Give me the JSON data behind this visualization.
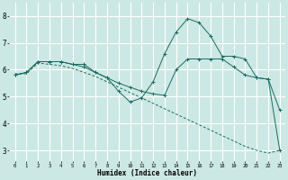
{
  "xlabel": "Humidex (Indice chaleur)",
  "background_color": "#cce8e4",
  "grid_color": "#ffffff",
  "line_color": "#1a6b60",
  "x_ticks": [
    0,
    1,
    2,
    3,
    4,
    5,
    6,
    7,
    8,
    9,
    10,
    11,
    12,
    13,
    14,
    15,
    16,
    17,
    18,
    19,
    20,
    21,
    22,
    23
  ],
  "yticks": [
    3,
    4,
    5,
    6,
    7,
    8
  ],
  "ylim": [
    2.6,
    8.5
  ],
  "xlim": [
    -0.5,
    23.5
  ],
  "series1_x": [
    0,
    1,
    2,
    3,
    4,
    5,
    6,
    7,
    8,
    9,
    10,
    11,
    12,
    13,
    14,
    15,
    16,
    17,
    18,
    19,
    20,
    21,
    22,
    23
  ],
  "series1_y": [
    5.8,
    5.9,
    6.3,
    6.3,
    6.3,
    6.2,
    6.2,
    5.9,
    5.7,
    5.2,
    4.8,
    4.95,
    5.55,
    6.6,
    7.4,
    7.9,
    7.75,
    7.25,
    6.5,
    6.5,
    6.4,
    5.7,
    5.65,
    4.5
  ],
  "series2_x": [
    0,
    1,
    2,
    3,
    4,
    5,
    6,
    7,
    8,
    9,
    10,
    11,
    12,
    13,
    14,
    15,
    16,
    17,
    18,
    19,
    20,
    21,
    22,
    23
  ],
  "series2_y": [
    5.8,
    5.9,
    6.3,
    6.3,
    6.3,
    6.2,
    6.1,
    5.9,
    5.7,
    5.5,
    5.35,
    5.2,
    5.1,
    5.05,
    6.0,
    6.4,
    6.4,
    6.4,
    6.4,
    6.1,
    5.8,
    5.7,
    5.65,
    3.0
  ],
  "series3_x": [
    0,
    1,
    2,
    3,
    4,
    5,
    6,
    7,
    8,
    9,
    10,
    11,
    12,
    13,
    14,
    15,
    16,
    17,
    18,
    19,
    20,
    21,
    22,
    23
  ],
  "series3_y": [
    5.85,
    5.85,
    6.25,
    6.2,
    6.15,
    6.05,
    5.9,
    5.75,
    5.55,
    5.35,
    5.15,
    4.95,
    4.75,
    4.55,
    4.35,
    4.15,
    3.95,
    3.75,
    3.55,
    3.35,
    3.15,
    3.0,
    2.9,
    3.0
  ]
}
